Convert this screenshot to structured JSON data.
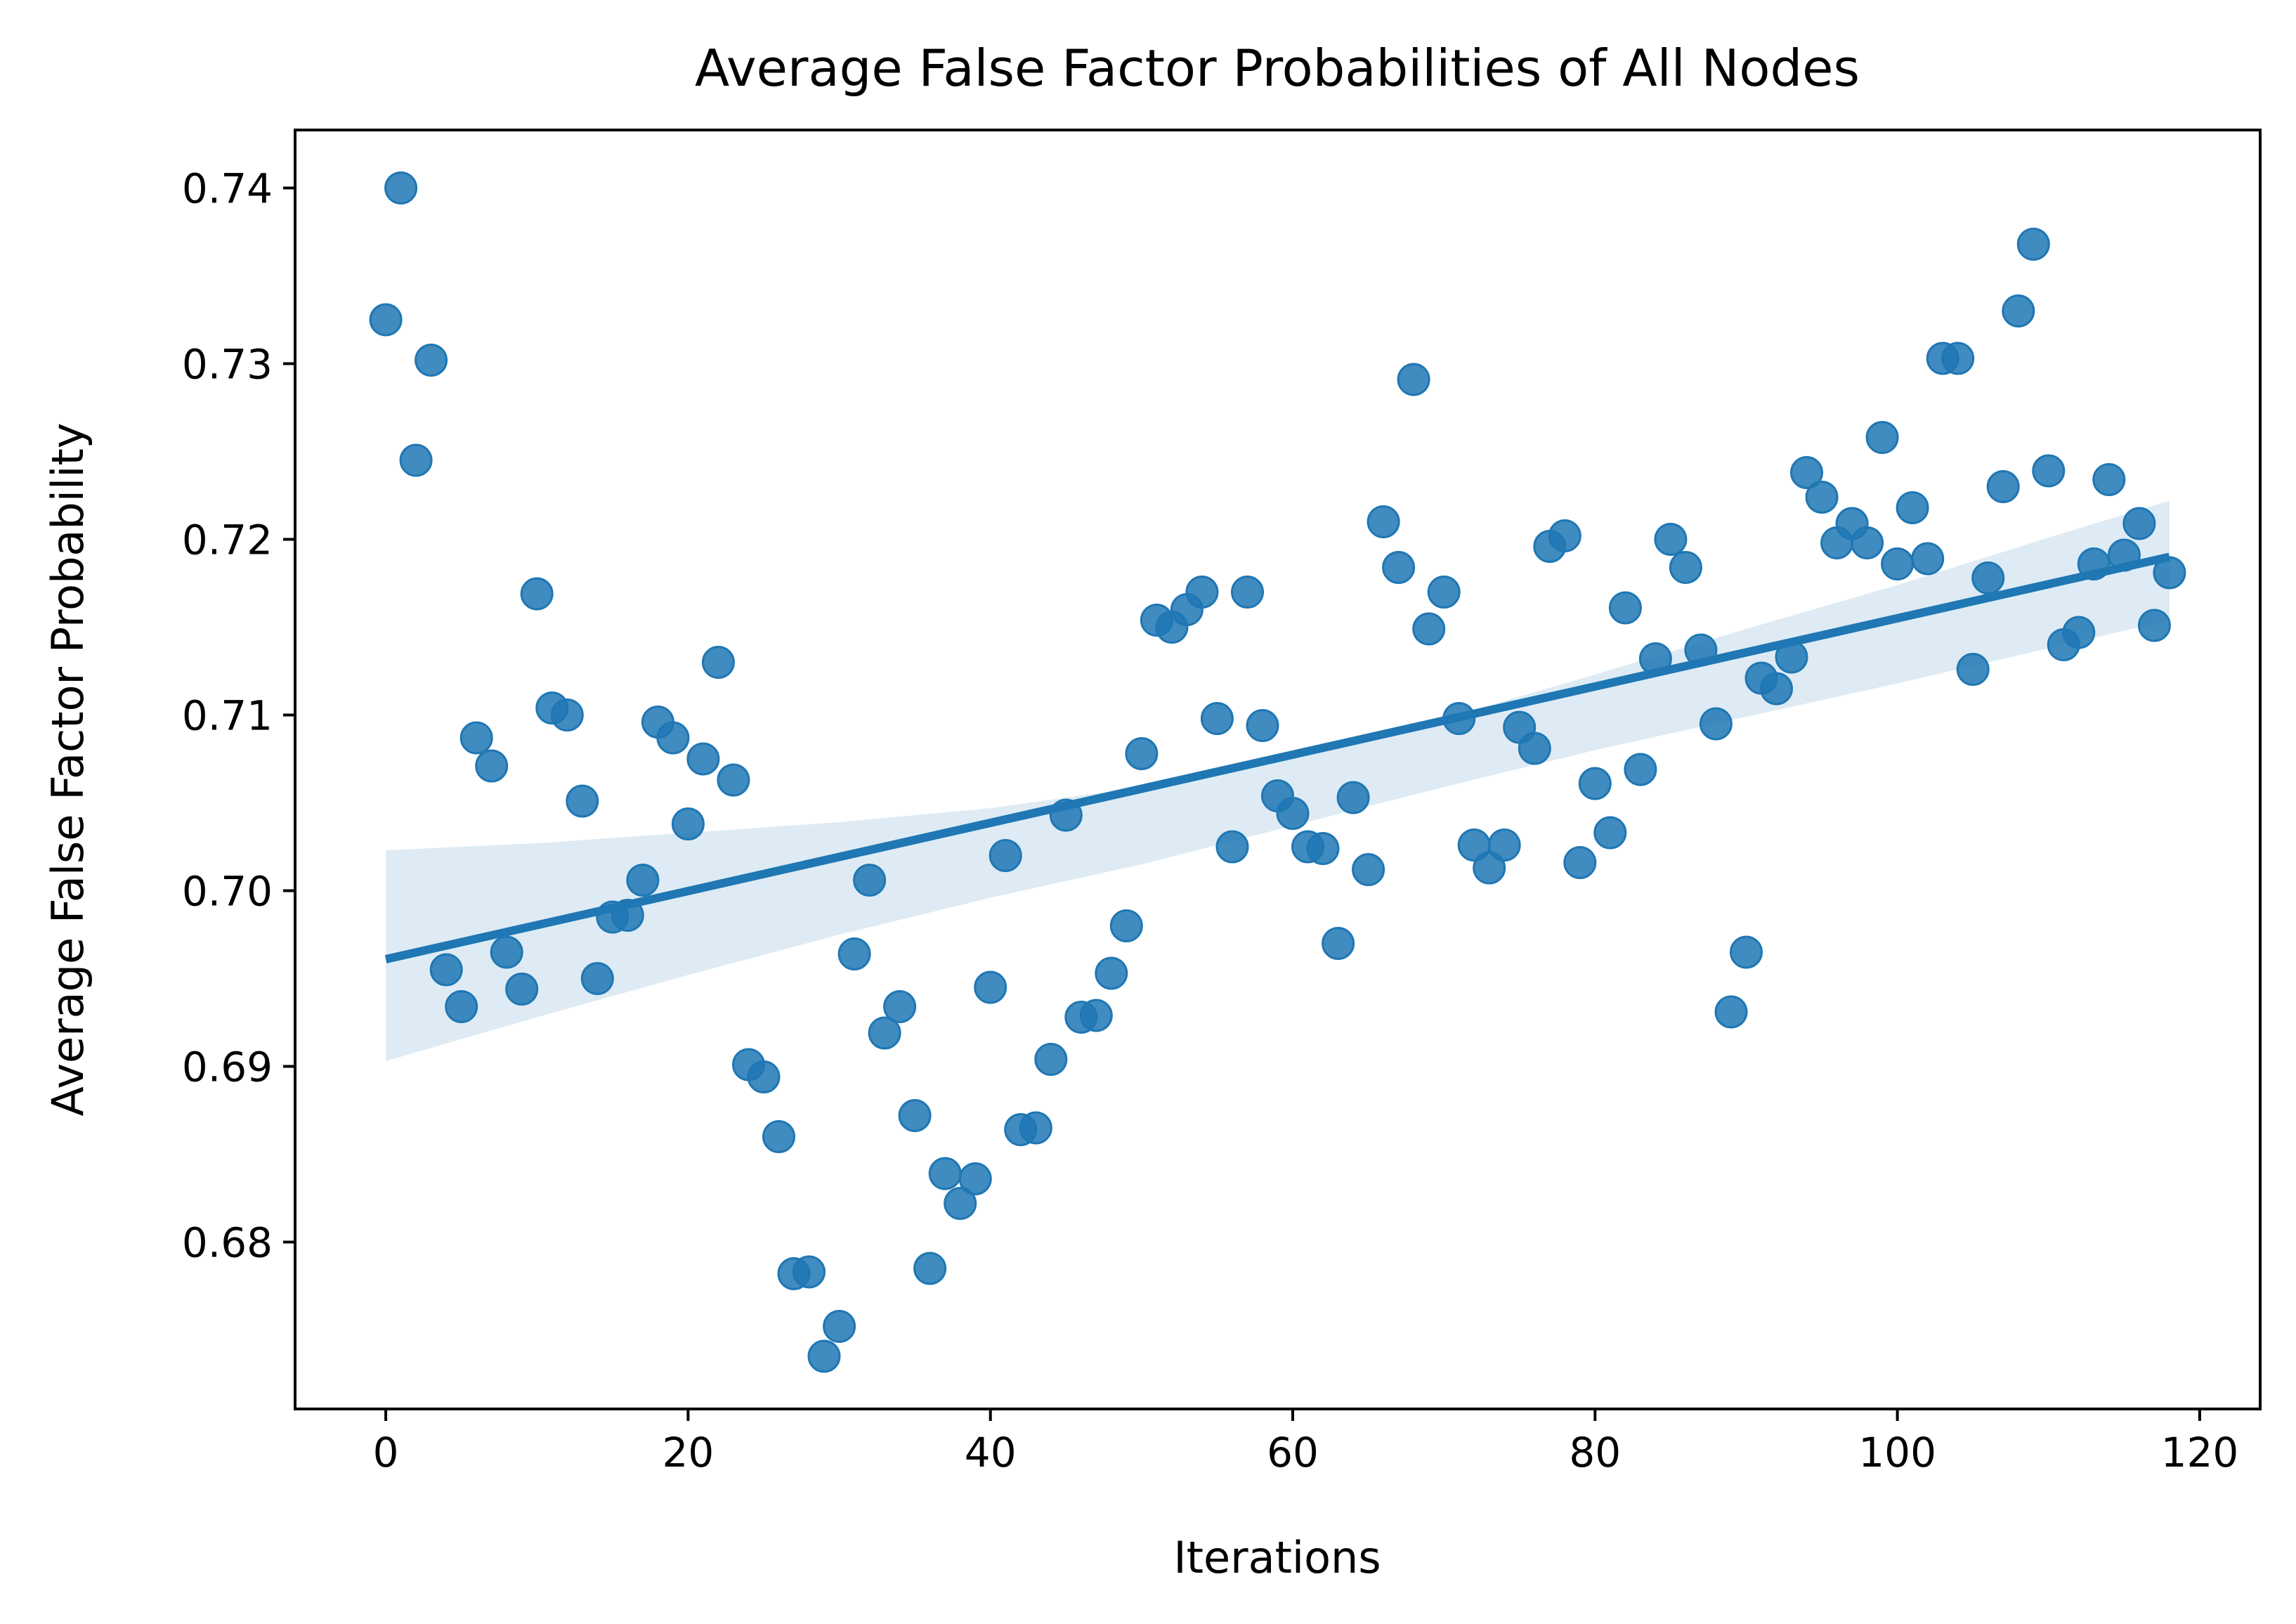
{
  "chart_data": {
    "type": "scatter",
    "title": "Average False Factor Probabilities of All Nodes",
    "xlabel": "Iterations",
    "ylabel": "Average False Factor Probability",
    "xlim": [
      -6,
      124
    ],
    "ylim": [
      0.6705,
      0.7433
    ],
    "xticks": [
      0,
      20,
      40,
      60,
      80,
      100,
      120
    ],
    "xtick_labels": [
      "0",
      "20",
      "40",
      "60",
      "80",
      "100",
      "120"
    ],
    "yticks": [
      0.68,
      0.69,
      0.7,
      0.71,
      0.72,
      0.73,
      0.74
    ],
    "ytick_labels": [
      "0.68",
      "0.69",
      "0.70",
      "0.71",
      "0.72",
      "0.73",
      "0.74"
    ],
    "grid": false,
    "colors": {
      "points": "#1f77b4",
      "regression_line": "#1f77b4",
      "confidence_band": "#1f77b4"
    },
    "series": [
      {
        "kind": "points",
        "x": [
          0,
          1,
          2,
          3,
          4,
          5,
          6,
          7,
          8,
          9,
          10,
          11,
          12,
          13,
          14,
          15,
          16,
          17,
          18,
          19,
          20,
          21,
          22,
          23,
          24,
          25,
          26,
          27,
          28,
          29,
          30,
          31,
          32,
          33,
          34,
          35,
          36,
          37,
          38,
          39,
          40,
          41,
          42,
          43,
          44,
          45,
          46,
          47,
          48,
          49,
          50,
          51,
          52,
          53,
          54,
          55,
          56,
          57,
          58,
          59,
          60,
          61,
          62,
          63,
          64,
          65,
          66,
          67,
          68,
          69,
          70,
          71,
          72,
          73,
          74,
          75,
          76,
          77,
          78,
          79,
          80,
          81,
          82,
          83,
          84,
          85,
          86,
          87,
          88,
          89,
          90,
          91,
          92,
          93,
          94,
          95,
          96,
          97,
          98,
          99,
          100,
          101,
          102,
          103,
          104,
          105,
          106,
          107,
          108,
          109,
          110,
          111,
          112,
          113,
          114,
          115,
          116,
          117,
          118
        ],
        "y": [
          0.7325,
          0.74,
          0.7245,
          0.7302,
          0.6955,
          0.6934,
          0.7087,
          0.7071,
          0.6965,
          0.6944,
          0.7169,
          0.7104,
          0.71,
          0.7051,
          0.695,
          0.6985,
          0.6986,
          0.7006,
          0.7096,
          0.7087,
          0.7038,
          0.7075,
          0.713,
          0.7063,
          0.6901,
          0.6894,
          0.686,
          0.6782,
          0.6783,
          0.6735,
          0.6752,
          0.6964,
          0.7006,
          0.6919,
          0.6934,
          0.6872,
          0.6785,
          0.6839,
          0.6822,
          0.6836,
          0.6945,
          0.702,
          0.6864,
          0.6865,
          0.6904,
          0.7043,
          0.6928,
          0.6929,
          0.6953,
          0.698,
          0.7078,
          0.7154,
          0.715,
          0.716,
          0.717,
          0.7098,
          0.7025,
          0.717,
          0.7094,
          0.7054,
          0.7044,
          0.7025,
          0.7024,
          0.697,
          0.7053,
          0.7012,
          0.721,
          0.7184,
          0.7291,
          0.7149,
          0.717,
          0.7098,
          0.7026,
          0.7013,
          0.7026,
          0.7093,
          0.7081,
          0.7196,
          0.7202,
          0.7016,
          0.7061,
          0.7033,
          0.7161,
          0.7069,
          0.7132,
          0.72,
          0.7184,
          0.7137,
          0.7095,
          0.6931,
          0.6965,
          0.7121,
          0.7115,
          0.7133,
          0.7238,
          0.7224,
          0.7198,
          0.7209,
          0.7198,
          0.7258,
          0.7186,
          0.7218,
          0.7189,
          0.7303,
          0.7303,
          0.7126,
          0.7178,
          0.723,
          0.733,
          0.7368,
          0.7239,
          0.714,
          0.7147,
          0.7186,
          0.7234,
          0.7191,
          0.7209,
          0.7151,
          0.7181
        ]
      },
      {
        "kind": "regression",
        "x": [
          0,
          118
        ],
        "y": [
          0.6961,
          0.719
        ]
      },
      {
        "kind": "confidence_band",
        "x": [
          0,
          10,
          20,
          30,
          40,
          50,
          60,
          70,
          80,
          90,
          100,
          110,
          118
        ],
        "lower": [
          0.6903,
          0.6928,
          0.6952,
          0.6975,
          0.6996,
          0.7015,
          0.7037,
          0.7059,
          0.708,
          0.7099,
          0.7118,
          0.7138,
          0.7154
        ],
        "upper": [
          0.7023,
          0.7027,
          0.7033,
          0.7039,
          0.7047,
          0.7059,
          0.7077,
          0.7098,
          0.7123,
          0.7149,
          0.7174,
          0.7201,
          0.7222
        ]
      }
    ]
  }
}
